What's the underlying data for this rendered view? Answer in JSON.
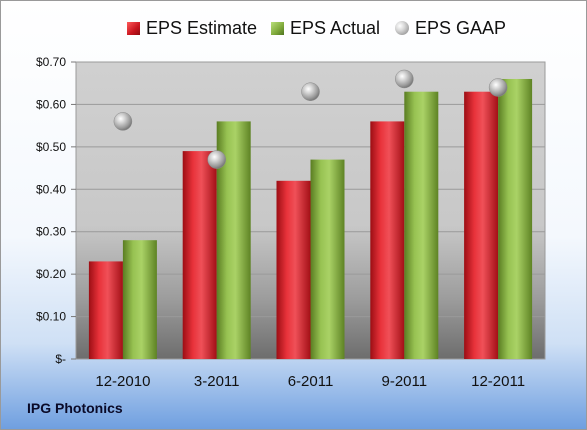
{
  "company": "IPG Photonics",
  "chart_data": {
    "type": "bar",
    "categories": [
      "12-2010",
      "3-2011",
      "6-2011",
      "9-2011",
      "12-2011"
    ],
    "series": [
      {
        "name": "EPS Estimate",
        "type": "bar",
        "color": "#c8141e",
        "values": [
          0.23,
          0.49,
          0.42,
          0.56,
          0.63
        ]
      },
      {
        "name": "EPS Actual",
        "type": "bar",
        "color": "#7ea83a",
        "values": [
          0.28,
          0.56,
          0.47,
          0.63,
          0.66
        ]
      },
      {
        "name": "EPS GAAP",
        "type": "scatter",
        "color": "#b0b0b0",
        "values": [
          0.56,
          0.47,
          0.63,
          0.66,
          0.64
        ]
      }
    ],
    "ylim": [
      0,
      0.7
    ],
    "yticks": [
      0,
      0.1,
      0.2,
      0.3,
      0.4,
      0.5,
      0.6,
      0.7
    ],
    "ytick_labels": [
      "$-",
      "$0.10",
      "$0.20",
      "$0.30",
      "$0.40",
      "$0.50",
      "$0.60",
      "$0.70"
    ],
    "grid": true,
    "legend_position": "top"
  }
}
